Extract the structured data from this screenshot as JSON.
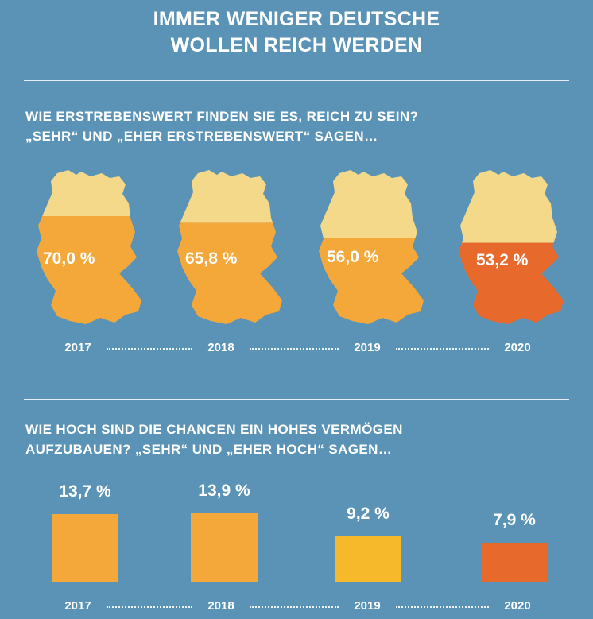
{
  "header": {
    "title_line1": "IMMER WENIGER  DEUTSCHE",
    "title_line2": "WOLLEN REICH WERDEN"
  },
  "section1": {
    "question_line1": "WIE ERSTREBENSWERT FINDEN SIE ES, REICH ZU SEIN?",
    "question_line2": "„SEHR“ UND „EHER ERSTREBENSWERT“ SAGEN…"
  },
  "section2": {
    "question_line1": "WIE HOCH SIND DIE CHANCEN EIN HOHES VERMÖGEN",
    "question_line2": "AUFZUBAUEN? „SEHR“ UND „EHER HOCH“ SAGEN…"
  },
  "colors": {
    "background": "#5a93b5",
    "map_top": "#f5d98a",
    "fill_orange": "#f4a83a",
    "fill_yellow": "#f6b92c",
    "highlight": "#e8692c"
  },
  "chart_data": [
    {
      "type": "map-fill",
      "categories": [
        "2017",
        "2018",
        "2019",
        "2020"
      ],
      "values": [
        70.0,
        65.8,
        56.0,
        53.2
      ],
      "value_labels": [
        "70,0 %",
        "65,8 %",
        "56,0 %",
        "53,2 %"
      ],
      "unit": "%"
    },
    {
      "type": "bar",
      "categories": [
        "2017",
        "2018",
        "2019",
        "2020"
      ],
      "values": [
        13.7,
        13.9,
        9.2,
        7.9
      ],
      "value_labels": [
        "13,7 %",
        "13,9 %",
        "9,2 %",
        "7,9 %"
      ],
      "unit": "%"
    }
  ]
}
